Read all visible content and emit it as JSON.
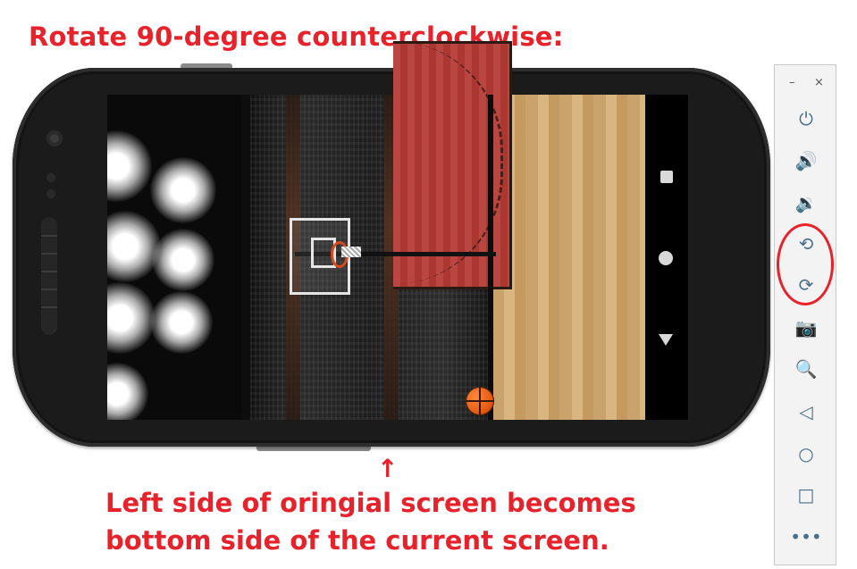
{
  "title": "Rotate 90-degree counterclockwise:",
  "note": {
    "line1": "Left side of oringial screen becomes",
    "line2": "bottom side of the current screen."
  },
  "arrow_glyph": "↑",
  "colors": {
    "annotation": "#e8222a",
    "toolbar_icon": "#4a6f8a"
  },
  "toolbar": {
    "minimize": "–",
    "close": "×",
    "buttons": [
      {
        "name": "power-icon",
        "glyph": "⏻"
      },
      {
        "name": "volume-up-icon",
        "glyph": "🔊"
      },
      {
        "name": "volume-down-icon",
        "glyph": "🔉"
      },
      {
        "name": "rotate-left-icon",
        "glyph": "⟲"
      },
      {
        "name": "rotate-right-icon",
        "glyph": "⟳"
      },
      {
        "name": "camera-icon",
        "glyph": "📷"
      },
      {
        "name": "zoom-icon",
        "glyph": "🔍"
      },
      {
        "name": "back-icon",
        "glyph": "◁"
      },
      {
        "name": "home-icon",
        "glyph": "○"
      },
      {
        "name": "overview-icon",
        "glyph": "□"
      },
      {
        "name": "more-icon",
        "glyph": "•••"
      }
    ]
  }
}
